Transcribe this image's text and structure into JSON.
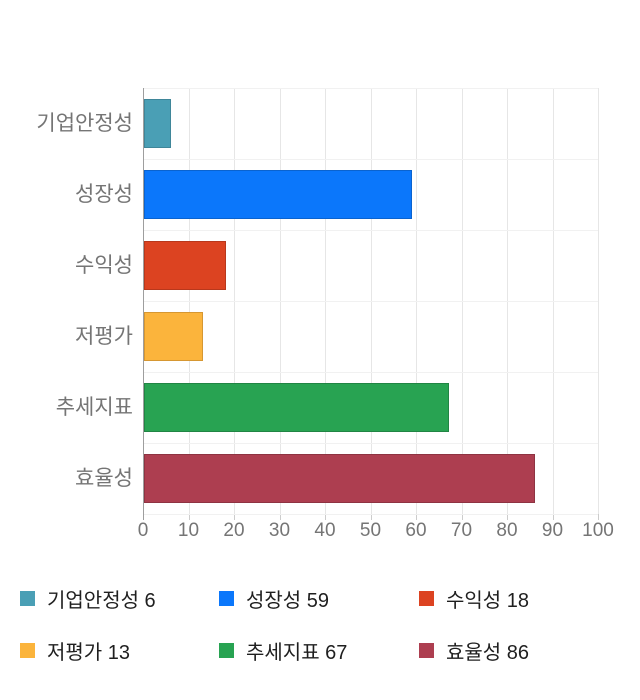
{
  "chart_data": {
    "type": "bar",
    "orientation": "horizontal",
    "title": "",
    "xlabel": "",
    "ylabel": "",
    "categories": [
      "기업안정성",
      "성장성",
      "수익성",
      "저평가",
      "추세지표",
      "효율성"
    ],
    "values": [
      6,
      59,
      18,
      13,
      67,
      86
    ],
    "bar_colors": [
      "#4A9FB5",
      "#0B77FB",
      "#DC4321",
      "#FBB43C",
      "#28A352",
      "#AD3E50"
    ],
    "bar_border_colors": [
      "#3f8699",
      "#0a63cf",
      "#b8381c",
      "#d69732",
      "#218544",
      "#8e3342"
    ],
    "xlim": [
      0,
      100
    ],
    "x_ticks": [
      0,
      10,
      20,
      30,
      40,
      50,
      60,
      70,
      80,
      90,
      100
    ],
    "grid": true,
    "legend_position": "bottom",
    "legend": [
      {
        "label": "기업안정성",
        "value": 6,
        "color": "#4A9FB5"
      },
      {
        "label": "성장성",
        "value": 59,
        "color": "#0B77FB"
      },
      {
        "label": "수익성",
        "value": 18,
        "color": "#DC4321"
      },
      {
        "label": "저평가",
        "value": 13,
        "color": "#FBB43C"
      },
      {
        "label": "추세지표",
        "value": 67,
        "color": "#28A352"
      },
      {
        "label": "효율성",
        "value": 86,
        "color": "#AD3E50"
      }
    ]
  },
  "colors": {
    "background": "#ffffff",
    "axis_line": "#9e9e9e",
    "gridline_vertical": "#e6e6e6",
    "gridline_horizontal": "#f1f1f1",
    "tick_mark": "#cccccc",
    "category_label_text": "#757575",
    "tick_label_text": "#757575",
    "legend_text": "#1f1f1f"
  }
}
